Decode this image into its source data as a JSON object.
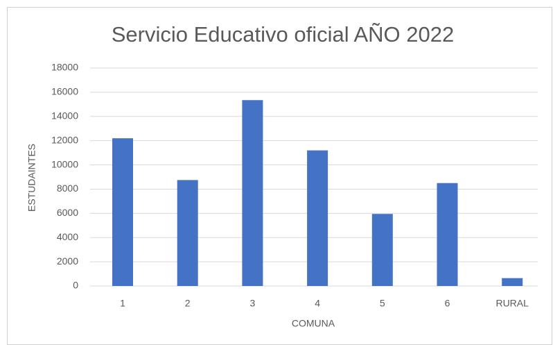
{
  "chart_data": {
    "type": "bar",
    "title": "Servicio Educativo oficial AÑO 2022",
    "x_label": "COMUNA",
    "y_label": "ESTUDAINTES",
    "categories": [
      "1",
      "2",
      "3",
      "4",
      "5",
      "6",
      "RURAL"
    ],
    "values": [
      12200,
      8750,
      15350,
      11200,
      5950,
      8500,
      650
    ],
    "color": "#4472c4",
    "ylim": [
      0,
      18000
    ],
    "yticks": [
      0,
      2000,
      4000,
      6000,
      8000,
      10000,
      12000,
      14000,
      16000,
      18000
    ],
    "grid": true
  }
}
